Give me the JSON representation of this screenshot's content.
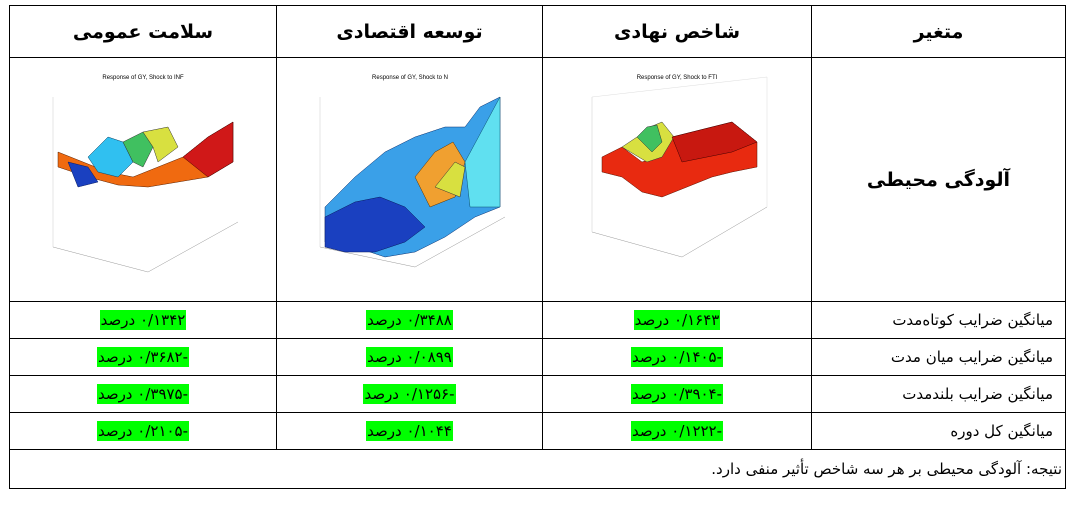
{
  "header": {
    "col_variable": "متغیر",
    "col_institutional": "شاخص نهادی",
    "col_economic": "توسعه اقتصادی",
    "col_health": "سلامت عمومی"
  },
  "variable_name": "آلودگی محیطی",
  "charts": [
    {
      "title": "Response of GY, Shock to FTI",
      "palette": "red"
    },
    {
      "title": "Response of GY, Shock to N",
      "palette": "blue"
    },
    {
      "title": "Response of GY, Shock to INF",
      "palette": "mixed"
    }
  ],
  "rows": [
    {
      "label": "میانگین ضرایب کوتاه‌مدت",
      "institutional": "۰/۱۶۴۳",
      "economic": "۰/۳۴۸۸",
      "health": "۰/۱۳۴۲"
    },
    {
      "label": "میانگین ضرایب میان مدت",
      "institutional": "-۰/۱۴۰۵",
      "economic": "۰/۰۸۹۹",
      "health": "-۰/۳۶۸۲"
    },
    {
      "label": "میانگین ضرایب بلندمدت",
      "institutional": "-۰/۳۹۰۴",
      "economic": "-۰/۱۲۵۶",
      "health": "-۰/۳۹۷۵"
    },
    {
      "label": "میانگین کل دوره",
      "institutional": "-۰/۱۲۲۲",
      "economic": "۰/۱۰۴۴",
      "health": "-۰/۲۱۰۵"
    }
  ],
  "unit": "درصد",
  "conclusion": "نتیجه: آلودگی محیطی بر هر سه شاخص تأثیر منفی دارد.",
  "colors": {
    "highlight": "#00ff00"
  }
}
